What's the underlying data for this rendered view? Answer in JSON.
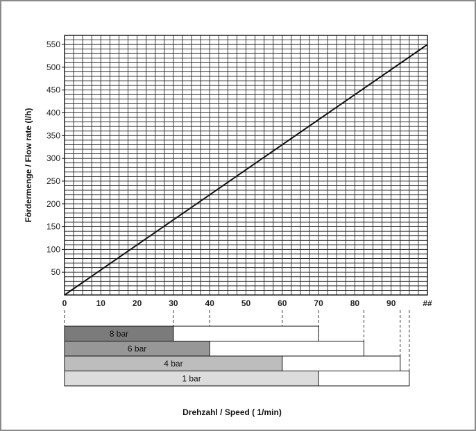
{
  "chart_data": {
    "type": "line",
    "xlabel": "Drehzahl / Speed ( 1/min)",
    "ylabel": "Fördermenge / Flow rate (l/h)",
    "xlim": [
      0,
      100
    ],
    "ylim": [
      0,
      570
    ],
    "x_tick_labels": [
      "0",
      "10",
      "20",
      "30",
      "40",
      "50",
      "60",
      "70",
      "80",
      "90",
      "##"
    ],
    "x_tick_values": [
      0,
      10,
      20,
      30,
      40,
      50,
      60,
      70,
      80,
      90,
      100
    ],
    "y_tick_labels": [
      "50",
      "100",
      "150",
      "200",
      "250",
      "300",
      "350",
      "400",
      "450",
      "500",
      "550"
    ],
    "y_tick_values": [
      50,
      100,
      150,
      200,
      250,
      300,
      350,
      400,
      450,
      500,
      550
    ],
    "grid": true,
    "series": [
      {
        "x": [
          0,
          100
        ],
        "y": [
          0,
          550
        ]
      }
    ],
    "pressure_ranges": [
      {
        "label": "8 bar",
        "filled_to": 30,
        "outline_to": 70,
        "color": "#7b7b7b"
      },
      {
        "label": "6 bar",
        "filled_to": 40,
        "outline_to": 82.5,
        "color": "#979797"
      },
      {
        "label": "4 bar",
        "filled_to": 60,
        "outline_to": 92.5,
        "color": "#bdbdbd"
      },
      {
        "label": "1 bar",
        "filled_to": 70,
        "outline_to": 95,
        "color": "#dcdcdc"
      }
    ]
  }
}
